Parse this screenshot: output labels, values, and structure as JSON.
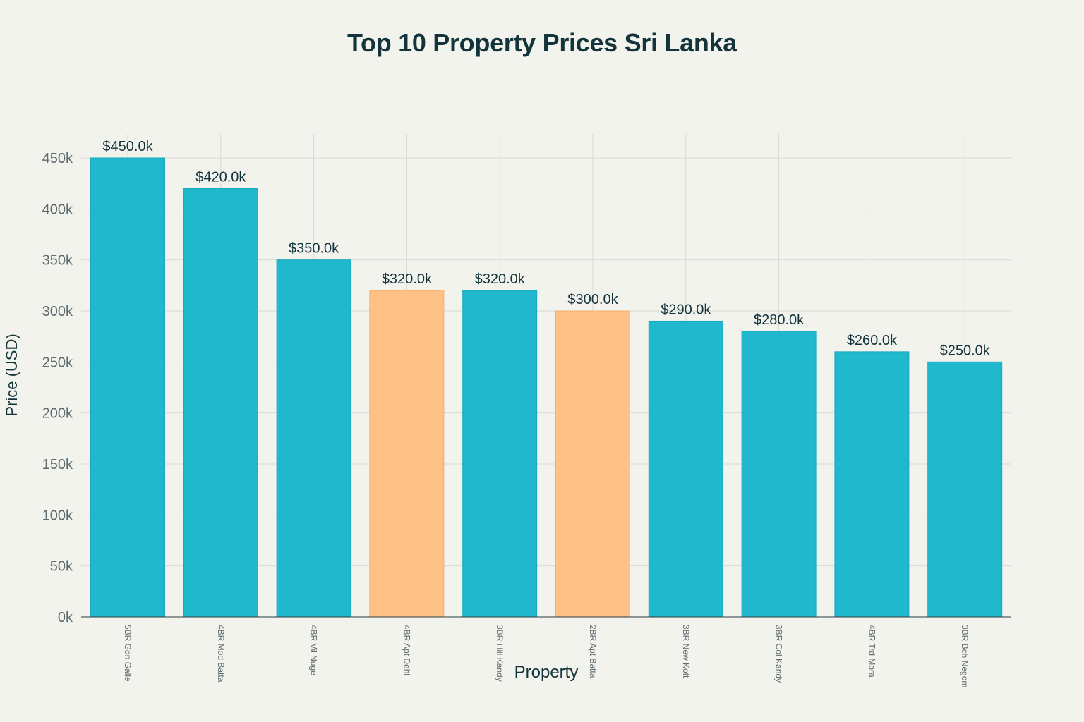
{
  "chart_data": {
    "type": "bar",
    "title": "Top 10 Property Prices Sri Lanka",
    "xlabel": "Property",
    "ylabel": "Price (USD)",
    "ylim": [
      0,
      450000
    ],
    "yticks": [
      0,
      50000,
      100000,
      150000,
      200000,
      250000,
      300000,
      350000,
      400000,
      450000
    ],
    "ytick_labels": [
      "0k",
      "50k",
      "100k",
      "150k",
      "200k",
      "250k",
      "300k",
      "350k",
      "400k",
      "450k"
    ],
    "grid": true,
    "categories": [
      "5BR Gdn Galle",
      "4BR Mod Batta",
      "4BR Vil Nuge",
      "4BR Apt Dehi",
      "3BR Hill Kandy",
      "2BR Apt Batta",
      "3BR New Kott",
      "3BR Col Kandy",
      "4BR Trd Mora",
      "3BR Bch Negom"
    ],
    "values": [
      450000,
      420000,
      350000,
      320000,
      320000,
      300000,
      290000,
      280000,
      260000,
      250000
    ],
    "data_labels": [
      "$450.0k",
      "$420.0k",
      "$350.0k",
      "$320.0k",
      "$320.0k",
      "$300.0k",
      "$290.0k",
      "$280.0k",
      "$260.0k",
      "$250.0k"
    ],
    "bar_colors": [
      "#1fb8cd",
      "#1fb8cd",
      "#1fb8cd",
      "#ffc185",
      "#1fb8cd",
      "#ffc185",
      "#1fb8cd",
      "#1fb8cd",
      "#1fb8cd",
      "#1fb8cd"
    ]
  },
  "colors": {
    "primary_bar": "#1fb8cd",
    "highlight_bar": "#ffc185",
    "background": "#f3f3ee",
    "grid": "#d9d9d4",
    "text": "#13343b",
    "tick_text": "#5e6b6e"
  }
}
